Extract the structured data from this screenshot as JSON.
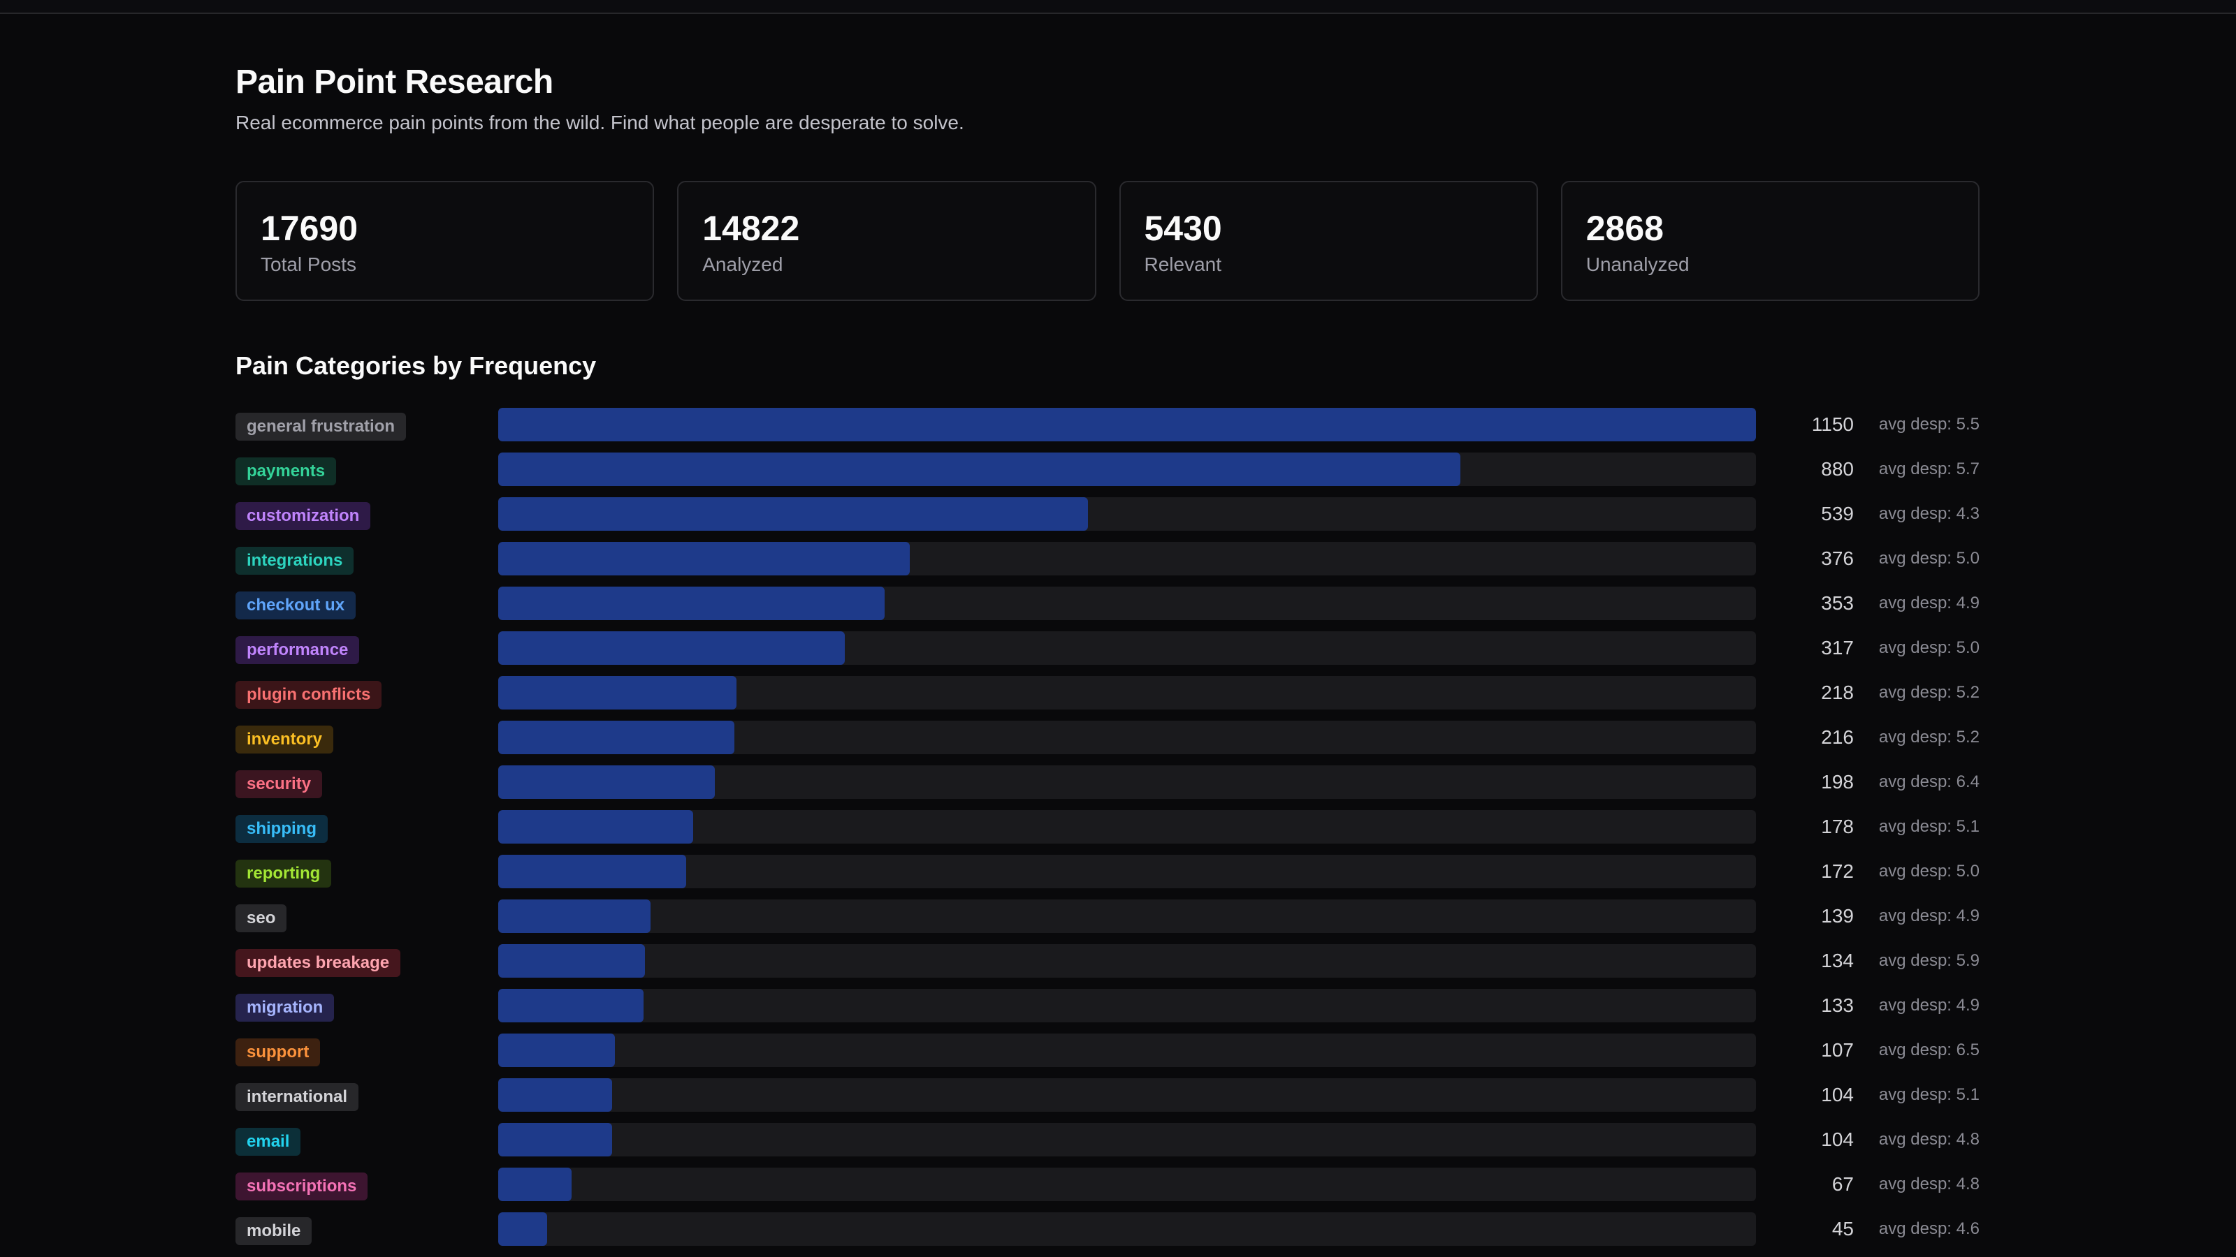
{
  "header": {
    "title": "Pain Point Research",
    "subtitle": "Real ecommerce pain points from the wild. Find what people are desperate to solve."
  },
  "stats": [
    {
      "value": "17690",
      "label": "Total Posts"
    },
    {
      "value": "14822",
      "label": "Analyzed"
    },
    {
      "value": "5430",
      "label": "Relevant"
    },
    {
      "value": "2868",
      "label": "Unanalyzed"
    }
  ],
  "section": {
    "title": "Pain Categories by Frequency"
  },
  "chart_data": {
    "type": "bar",
    "orientation": "horizontal",
    "title": "Pain Categories by Frequency",
    "max_value": 1150,
    "bar_color": "#1e3a8a",
    "categories": [
      {
        "name": "general frustration",
        "count": 1150,
        "avg": "avg desp: 5.5",
        "color": "#a1a1aa",
        "bg": "#27272a"
      },
      {
        "name": "payments",
        "count": 880,
        "avg": "avg desp: 5.7",
        "color": "#34d399",
        "bg": "#0f2e26"
      },
      {
        "name": "customization",
        "count": 539,
        "avg": "avg desp: 4.3",
        "color": "#c084fc",
        "bg": "#2e1a47"
      },
      {
        "name": "integrations",
        "count": 376,
        "avg": "avg desp: 5.0",
        "color": "#2dd4bf",
        "bg": "#0e2f2d"
      },
      {
        "name": "checkout ux",
        "count": 353,
        "avg": "avg desp: 4.9",
        "color": "#60a5fa",
        "bg": "#13294a"
      },
      {
        "name": "performance",
        "count": 317,
        "avg": "avg desp: 5.0",
        "color": "#c084fc",
        "bg": "#2e1a47"
      },
      {
        "name": "plugin conflicts",
        "count": 218,
        "avg": "avg desp: 5.2",
        "color": "#f87171",
        "bg": "#3b1518"
      },
      {
        "name": "inventory",
        "count": 216,
        "avg": "avg desp: 5.2",
        "color": "#fbbf24",
        "bg": "#3a2a0c"
      },
      {
        "name": "security",
        "count": 198,
        "avg": "avg desp: 6.4",
        "color": "#fb7185",
        "bg": "#3b1520"
      },
      {
        "name": "shipping",
        "count": 178,
        "avg": "avg desp: 5.1",
        "color": "#38bdf8",
        "bg": "#0c2d40"
      },
      {
        "name": "reporting",
        "count": 172,
        "avg": "avg desp: 5.0",
        "color": "#a3e635",
        "bg": "#233310"
      },
      {
        "name": "seo",
        "count": 139,
        "avg": "avg desp: 4.9",
        "color": "#d4d4d8",
        "bg": "#27272a"
      },
      {
        "name": "updates breakage",
        "count": 134,
        "avg": "avg desp: 5.9",
        "color": "#fda4af",
        "bg": "#45161d"
      },
      {
        "name": "migration",
        "count": 133,
        "avg": "avg desp: 4.9",
        "color": "#a5b4fc",
        "bg": "#25234d"
      },
      {
        "name": "support",
        "count": 107,
        "avg": "avg desp: 6.5",
        "color": "#fb923c",
        "bg": "#3d2110"
      },
      {
        "name": "international",
        "count": 104,
        "avg": "avg desp: 5.1",
        "color": "#d4d4d8",
        "bg": "#27272a"
      },
      {
        "name": "email",
        "count": 104,
        "avg": "avg desp: 4.8",
        "color": "#22d3ee",
        "bg": "#0c2f38"
      },
      {
        "name": "subscriptions",
        "count": 67,
        "avg": "avg desp: 4.8",
        "color": "#f472b6",
        "bg": "#3d1530"
      },
      {
        "name": "mobile",
        "count": 45,
        "avg": "avg desp: 4.6",
        "color": "#d4d4d8",
        "bg": "#27272a"
      }
    ]
  }
}
